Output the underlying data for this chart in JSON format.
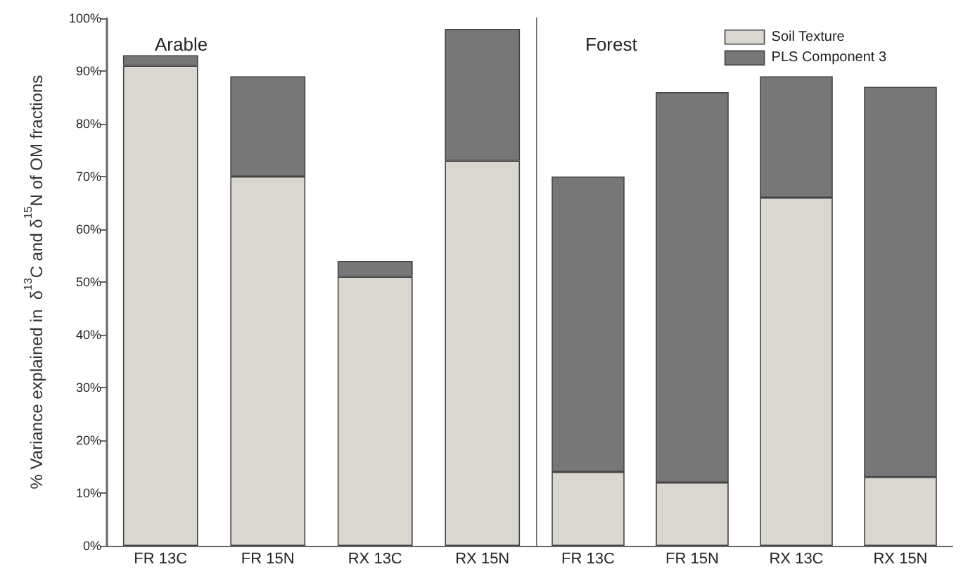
{
  "chart_data": [
    {
      "type": "bar",
      "title": "Arable",
      "ylabel": "% Variance explained in  δ$^{13}$C and δ$^{15}$N of OM fractions",
      "categories": [
        "FR 13C",
        "FR 15N",
        "RX 13C",
        "RX 15N"
      ],
      "stacked": true,
      "series": [
        {
          "color": "#dad7d0",
          "values": [
            91,
            70,
            51,
            73
          ]
        },
        {
          "color": "#777777",
          "values": [
            2,
            19,
            3,
            25
          ]
        }
      ],
      "ylim": [
        0,
        100
      ],
      "yticks": [
        {
          "value": 0,
          "label": "0%"
        },
        {
          "value": 10,
          "label": "10%"
        },
        {
          "value": 20,
          "label": "20%"
        },
        {
          "value": 30,
          "label": "30%"
        },
        {
          "value": 40,
          "label": "40%"
        },
        {
          "value": 50,
          "label": "50%"
        },
        {
          "value": 60,
          "label": "60%"
        },
        {
          "value": 70,
          "label": "70%"
        },
        {
          "value": 80,
          "label": "80%"
        },
        {
          "value": 90,
          "label": "90%"
        },
        {
          "value": 100,
          "label": "100%"
        }
      ],
      "legend": false
    },
    {
      "type": "bar",
      "title": "Forest",
      "categories": [
        "FR 13C",
        "FR 15N",
        "RX 13C",
        "RX 15N"
      ],
      "stacked": true,
      "series": [
        {
          "name": "Soil Texture",
          "color": "#dad7d0",
          "values": [
            14,
            12,
            66,
            13
          ]
        },
        {
          "name": "PLS Component 3",
          "color": "#777777",
          "values": [
            56,
            74,
            23,
            74
          ]
        }
      ],
      "ylim": [
        0,
        100
      ],
      "tick_labels": "x",
      "legend": "top right"
    }
  ]
}
